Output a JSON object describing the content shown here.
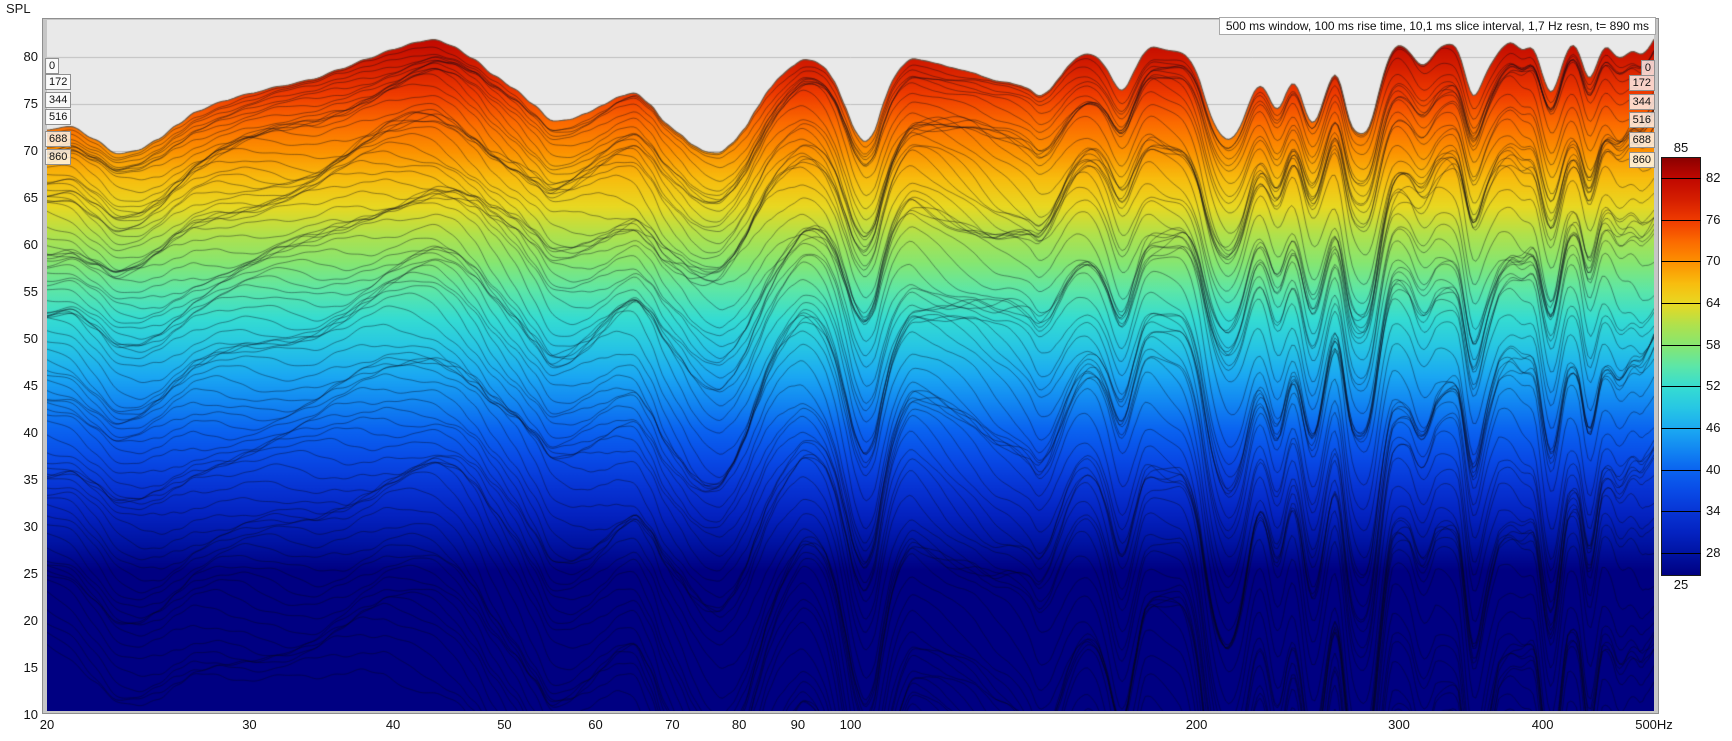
{
  "header": {
    "annotation": "500 ms window, 100 ms rise time, 10,1 ms slice interval, 1,7 Hz resn, t= 890 ms"
  },
  "axes": {
    "y_label": "SPL",
    "y_min": 10,
    "y_max": 85,
    "y_ticks": [
      80,
      75,
      70,
      65,
      60,
      55,
      50,
      45,
      40,
      35,
      30,
      25,
      20,
      15,
      10
    ],
    "x_scale": "log",
    "x_min": 20,
    "x_max": 500,
    "x_ticks": [
      {
        "f": 20,
        "label": "20"
      },
      {
        "f": 30,
        "label": "30"
      },
      {
        "f": 40,
        "label": "40"
      },
      {
        "f": 50,
        "label": "50"
      },
      {
        "f": 60,
        "label": "60"
      },
      {
        "f": 70,
        "label": "70"
      },
      {
        "f": 80,
        "label": "80"
      },
      {
        "f": 90,
        "label": "90"
      },
      {
        "f": 100,
        "label": "100"
      },
      {
        "f": 200,
        "label": "200"
      },
      {
        "f": 300,
        "label": "300"
      },
      {
        "f": 400,
        "label": "400"
      },
      {
        "f": 500,
        "label": "500Hz"
      }
    ],
    "grid_step_db": 5
  },
  "slice_labels": {
    "labels": [
      "0",
      "172",
      "344",
      "516",
      "688",
      "860"
    ],
    "left_centers_y": [
      66,
      82,
      100,
      117,
      139,
      157
    ],
    "right_centers_y": [
      68,
      83,
      102,
      120,
      140,
      160
    ]
  },
  "colorbar": {
    "min": 25,
    "max": 85,
    "top_label": "85",
    "bottom_label": "25",
    "ticks": [
      82,
      76,
      70,
      64,
      58,
      52,
      46,
      40,
      34,
      28
    ]
  },
  "colors": {
    "page_bg": "#ffffff",
    "plot_bg": "#e9e9e9",
    "grid": "#bdbdbd",
    "frame": "#c6c6c6",
    "frame_edge": "#8f8f8f",
    "slice_line": "rgba(8,8,25,0.60)",
    "envelope_line": "rgba(95,82,66,0.95)",
    "map": [
      [
        25,
        "#000082"
      ],
      [
        28,
        "#0013a2"
      ],
      [
        31,
        "#0422c0"
      ],
      [
        34,
        "#0734d4"
      ],
      [
        37,
        "#094ae6"
      ],
      [
        40,
        "#0a62f0"
      ],
      [
        43,
        "#1286f2"
      ],
      [
        46,
        "#1ba9f2"
      ],
      [
        49,
        "#27c6e4"
      ],
      [
        52,
        "#35dcd2"
      ],
      [
        55,
        "#5ce6a8"
      ],
      [
        58,
        "#86e671"
      ],
      [
        61,
        "#b0e14c"
      ],
      [
        64,
        "#e8d822"
      ],
      [
        67,
        "#f8bc0e"
      ],
      [
        70,
        "#fc9000"
      ],
      [
        73,
        "#fb6a00"
      ],
      [
        76,
        "#ef3b00"
      ],
      [
        79,
        "#d51e00"
      ],
      [
        82,
        "#c00800"
      ],
      [
        85,
        "#8c0000"
      ]
    ]
  },
  "chart_data": {
    "type": "area",
    "subtype": "spectral-decay-waterfall",
    "x_scale": "log",
    "xlabel_unit": "Hz",
    "ylabel": "SPL",
    "xlim": [
      20,
      500
    ],
    "ylim": [
      10,
      85
    ],
    "slices": {
      "count": 89,
      "interval_ms": 10.1,
      "rise_time_ms": 100,
      "window_ms": 500,
      "total_ms": 890,
      "labeled_times_ms": [
        0,
        172,
        344,
        516,
        688,
        860
      ]
    },
    "envelope_db_by_hz": [
      [
        20,
        72.2
      ],
      [
        21,
        72.6
      ],
      [
        22,
        71.2
      ],
      [
        23,
        69.6
      ],
      [
        24,
        70.0
      ],
      [
        25,
        71.2
      ],
      [
        26,
        72.8
      ],
      [
        27,
        74.2
      ],
      [
        28.5,
        75.3
      ],
      [
        30,
        76.1
      ],
      [
        32,
        76.9
      ],
      [
        34,
        77.6
      ],
      [
        36,
        78.7
      ],
      [
        38,
        79.8
      ],
      [
        40,
        80.8
      ],
      [
        42,
        81.6
      ],
      [
        43.5,
        81.9
      ],
      [
        45,
        81.2
      ],
      [
        47,
        79.8
      ],
      [
        49,
        78.0
      ],
      [
        51,
        76.6
      ],
      [
        53,
        74.9
      ],
      [
        55,
        73.1
      ],
      [
        57,
        73.3
      ],
      [
        59,
        74.0
      ],
      [
        61,
        74.9
      ],
      [
        63,
        75.8
      ],
      [
        65,
        76.2
      ],
      [
        67,
        74.9
      ],
      [
        69,
        72.9
      ],
      [
        71,
        71.8
      ],
      [
        73,
        70.5
      ],
      [
        75,
        69.8
      ],
      [
        77,
        69.7
      ],
      [
        79,
        70.8
      ],
      [
        81,
        72.4
      ],
      [
        83,
        74.6
      ],
      [
        85,
        76.6
      ],
      [
        87,
        78.0
      ],
      [
        89,
        79.0
      ],
      [
        91,
        79.8
      ],
      [
        93,
        79.6
      ],
      [
        95,
        78.9
      ],
      [
        97,
        77.3
      ],
      [
        99,
        74.6
      ],
      [
        101,
        71.9
      ],
      [
        103,
        70.7
      ],
      [
        105,
        71.9
      ],
      [
        107,
        75.4
      ],
      [
        109,
        77.8
      ],
      [
        111,
        79.1
      ],
      [
        113,
        79.9
      ],
      [
        116,
        79.6
      ],
      [
        119,
        79.3
      ],
      [
        122,
        78.9
      ],
      [
        125,
        78.6
      ],
      [
        128,
        78.3
      ],
      [
        131,
        77.8
      ],
      [
        134,
        77.4
      ],
      [
        137,
        77.3
      ],
      [
        140,
        77.0
      ],
      [
        143,
        76.6
      ],
      [
        146,
        75.7
      ],
      [
        149,
        76.4
      ],
      [
        152,
        77.8
      ],
      [
        155,
        79.2
      ],
      [
        158,
        80.1
      ],
      [
        161,
        80.4
      ],
      [
        164,
        80.0
      ],
      [
        167,
        78.8
      ],
      [
        170,
        77.0
      ],
      [
        172,
        76.1
      ],
      [
        174,
        76.8
      ],
      [
        177,
        78.8
      ],
      [
        180,
        80.5
      ],
      [
        183,
        81.2
      ],
      [
        186,
        80.9
      ],
      [
        189,
        80.7
      ],
      [
        192,
        80.6
      ],
      [
        195,
        80.4
      ],
      [
        198,
        79.5
      ],
      [
        201,
        77.8
      ],
      [
        204,
        75.0
      ],
      [
        207,
        72.8
      ],
      [
        210,
        71.6
      ],
      [
        213,
        71.0
      ],
      [
        216,
        71.5
      ],
      [
        219,
        72.8
      ],
      [
        222,
        74.9
      ],
      [
        225,
        76.7
      ],
      [
        228,
        77.1
      ],
      [
        231,
        75.9
      ],
      [
        234,
        74.2
      ],
      [
        237,
        74.5
      ],
      [
        240,
        76.6
      ],
      [
        243,
        77.6
      ],
      [
        246,
        76.3
      ],
      [
        249,
        73.9
      ],
      [
        252,
        72.6
      ],
      [
        255,
        73.3
      ],
      [
        258,
        75.4
      ],
      [
        261,
        77.3
      ],
      [
        264,
        78.6
      ],
      [
        267,
        77.4
      ],
      [
        270,
        74.3
      ],
      [
        273,
        72.2
      ],
      [
        276,
        71.8
      ],
      [
        279,
        71.7
      ],
      [
        282,
        72.0
      ],
      [
        285,
        73.6
      ],
      [
        288,
        76.1
      ],
      [
        291,
        78.3
      ],
      [
        294,
        80.0
      ],
      [
        297,
        81.0
      ],
      [
        300,
        81.4
      ],
      [
        304,
        81.0
      ],
      [
        308,
        80.2
      ],
      [
        312,
        79.2
      ],
      [
        316,
        79.0
      ],
      [
        320,
        79.8
      ],
      [
        324,
        80.8
      ],
      [
        328,
        81.3
      ],
      [
        332,
        81.4
      ],
      [
        336,
        81.3
      ],
      [
        340,
        79.8
      ],
      [
        344,
        77.2
      ],
      [
        348,
        75.3
      ],
      [
        352,
        76.2
      ],
      [
        356,
        77.9
      ],
      [
        360,
        79.1
      ],
      [
        364,
        80.0
      ],
      [
        368,
        80.9
      ],
      [
        372,
        81.4
      ],
      [
        376,
        81.7
      ],
      [
        380,
        81.2
      ],
      [
        384,
        80.6
      ],
      [
        388,
        80.9
      ],
      [
        392,
        81.2
      ],
      [
        396,
        80.1
      ],
      [
        400,
        78.0
      ],
      [
        404,
        76.4
      ],
      [
        408,
        75.8
      ],
      [
        412,
        77.2
      ],
      [
        416,
        79.1
      ],
      [
        420,
        80.7
      ],
      [
        424,
        81.5
      ],
      [
        428,
        81.3
      ],
      [
        432,
        79.9
      ],
      [
        436,
        78.1
      ],
      [
        440,
        77.2
      ],
      [
        444,
        78.4
      ],
      [
        448,
        80.0
      ],
      [
        452,
        81.1
      ],
      [
        456,
        81.3
      ],
      [
        460,
        80.5
      ],
      [
        464,
        79.9
      ],
      [
        468,
        79.8
      ],
      [
        472,
        80.1
      ],
      [
        476,
        80.5
      ],
      [
        480,
        80.8
      ],
      [
        484,
        80.4
      ],
      [
        488,
        80.1
      ],
      [
        492,
        80.5
      ],
      [
        496,
        81.1
      ],
      [
        500,
        81.9
      ]
    ]
  }
}
